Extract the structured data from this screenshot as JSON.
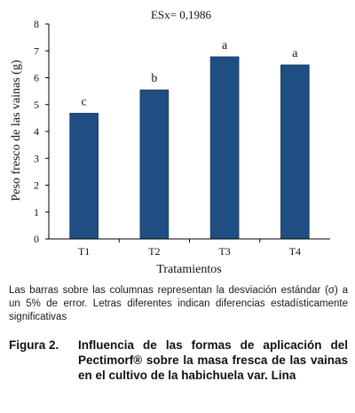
{
  "chart_data": {
    "type": "bar",
    "annotation": "ESx= 0,1986",
    "categories": [
      "T1",
      "T2",
      "T3",
      "T4"
    ],
    "values": [
      4.68,
      5.55,
      6.78,
      6.48
    ],
    "letters": [
      "c",
      "b",
      "a",
      "a"
    ],
    "xlabel": "Tratamientos",
    "ylabel": "Peso fresco de las vainas (g)",
    "ylim": [
      0,
      8
    ],
    "yticks": [
      "0",
      "1",
      "2",
      "3",
      "4",
      "5",
      "6",
      "7",
      "8"
    ],
    "grid": false,
    "bar_color": "#1f4e82"
  },
  "note": "Las barras sobre las columnas representan la desviación estándar (σ) a un 5% de error. Letras diferentes indican diferencias estadísticamente significativas",
  "caption": {
    "label": "Figura 2.",
    "text": "Influencia de las formas de aplicación del Pectimorf® sobre la masa fresca de las vainas en el cultivo de la habichuela var. Lina"
  }
}
